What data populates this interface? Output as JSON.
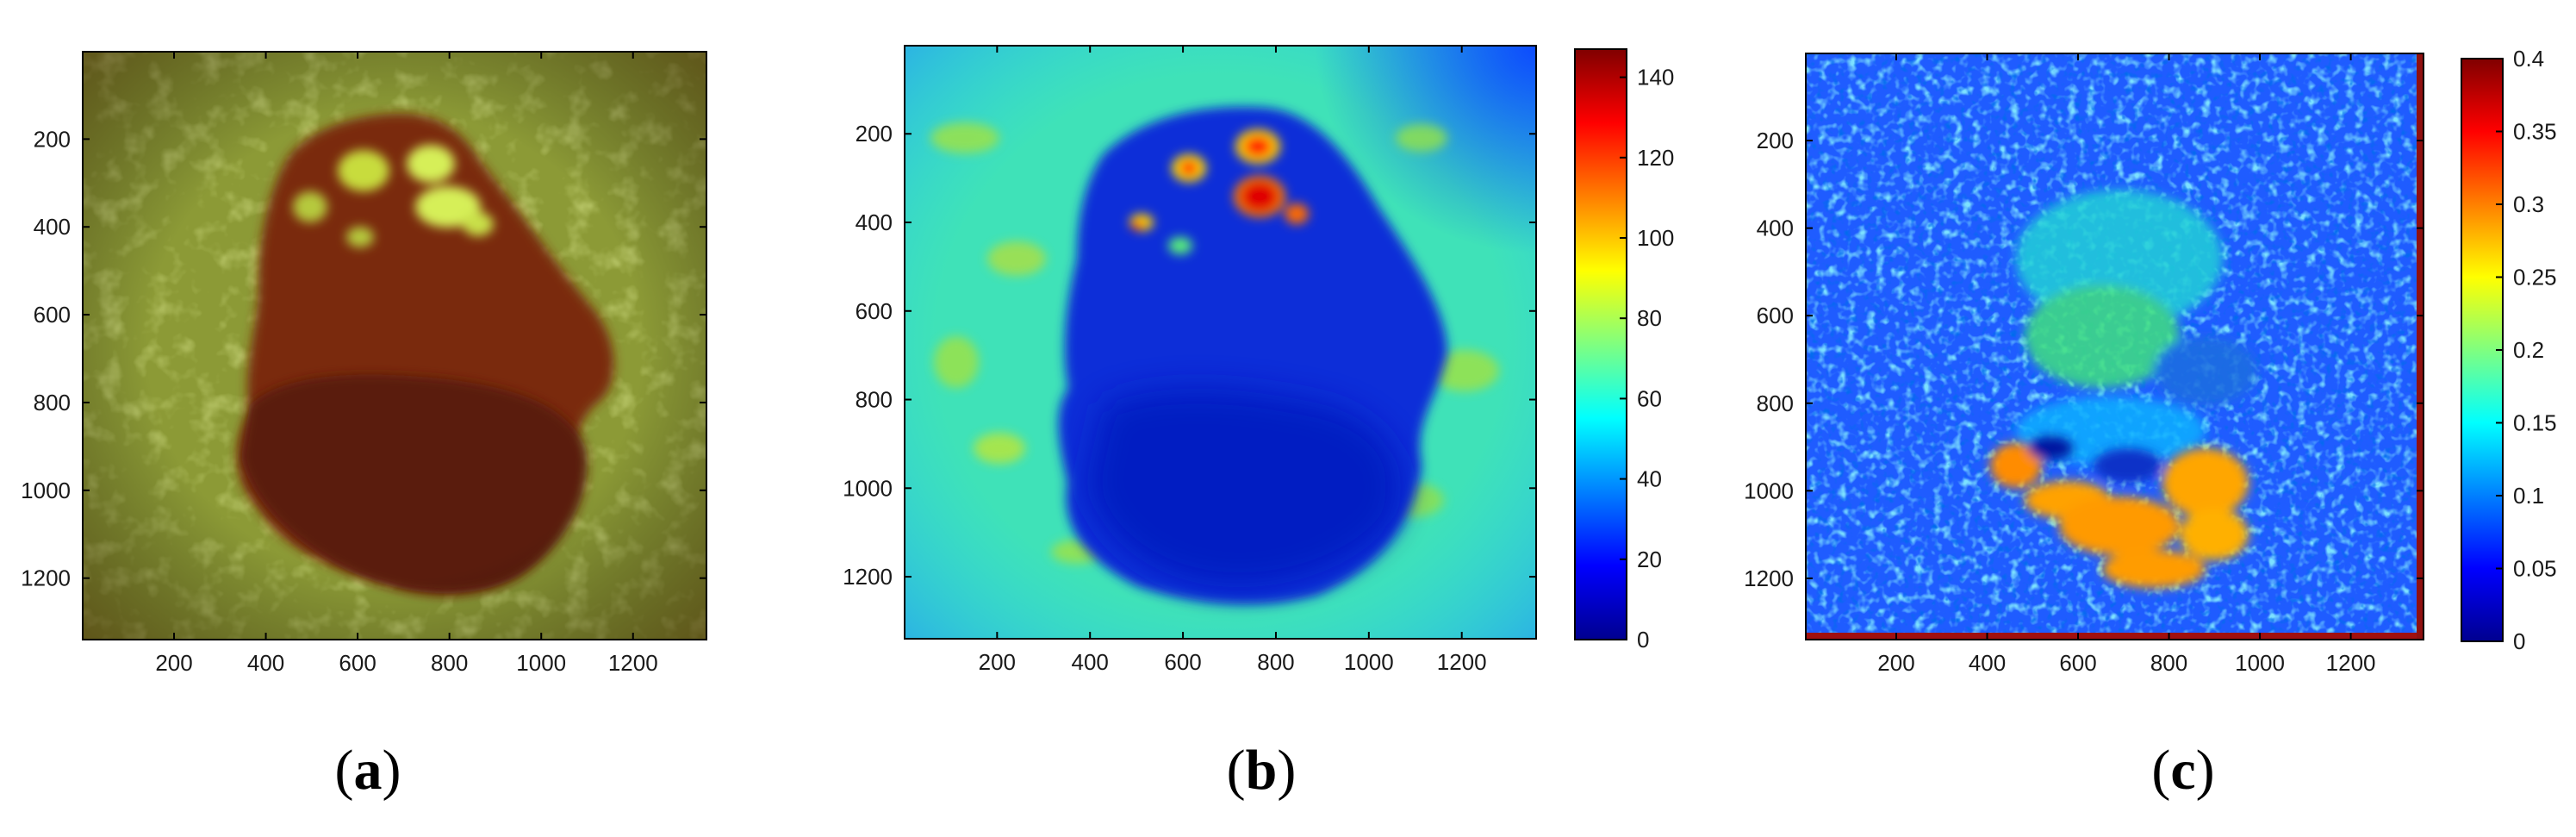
{
  "figure": {
    "panels": [
      {
        "caption_open": "(",
        "caption_letter": "a",
        "caption_close": ")"
      },
      {
        "caption_open": "(",
        "caption_letter": "b",
        "caption_close": ")"
      },
      {
        "caption_open": "(",
        "caption_letter": "c",
        "caption_close": ")"
      }
    ]
  },
  "chart_data": [
    {
      "type": "heatmap",
      "image_kind": "dermoscopic RGB image",
      "colors": {
        "background": "#8c9a36",
        "lesion": "#7a2a10",
        "lesion_core": "#5a1a0c",
        "bright_spots": "#d6ef58"
      },
      "x_ticks": [
        200,
        400,
        600,
        800,
        1000,
        1200
      ],
      "y_ticks": [
        200,
        400,
        600,
        800,
        1000,
        1200
      ],
      "xlim": [
        1,
        1360
      ],
      "ylim": [
        1,
        1340
      ],
      "y_reversed": true,
      "colorbar": null
    },
    {
      "type": "heatmap",
      "colormap": "jet",
      "x_ticks": [
        200,
        400,
        600,
        800,
        1000,
        1200
      ],
      "y_ticks": [
        200,
        400,
        600,
        800,
        1000,
        1200
      ],
      "xlim": [
        1,
        1360
      ],
      "ylim": [
        1,
        1340
      ],
      "y_reversed": true,
      "colorbar": {
        "min": 0,
        "max": 147,
        "ticks": [
          0,
          20,
          40,
          60,
          80,
          100,
          120,
          140
        ]
      }
    },
    {
      "type": "heatmap",
      "colormap": "jet",
      "x_ticks": [
        200,
        400,
        600,
        800,
        1000,
        1200
      ],
      "y_ticks": [
        200,
        400,
        600,
        800,
        1000,
        1200
      ],
      "xlim": [
        1,
        1360
      ],
      "ylim": [
        1,
        1340
      ],
      "y_reversed": true,
      "colorbar": {
        "min": 0,
        "max": 0.4,
        "ticks": [
          0,
          0.05,
          0.1,
          0.15,
          0.2,
          0.25,
          0.3,
          0.35,
          0.4
        ]
      }
    }
  ]
}
